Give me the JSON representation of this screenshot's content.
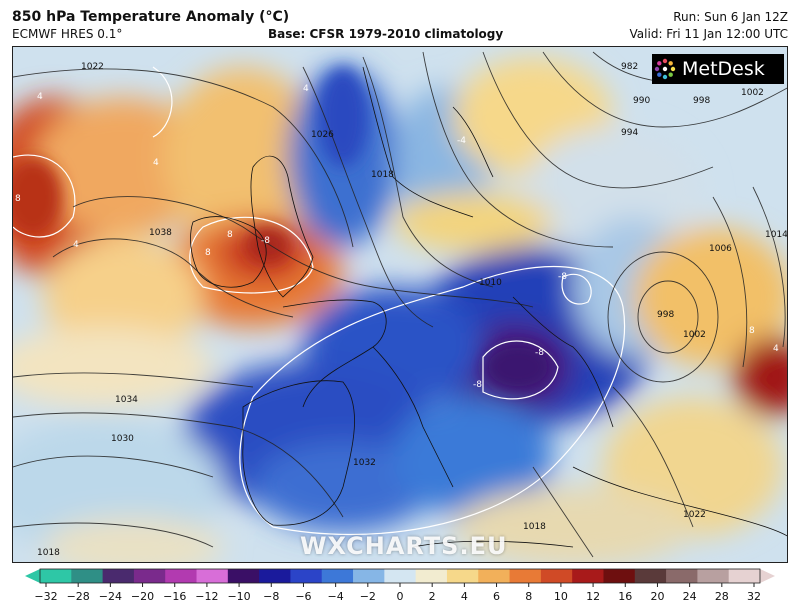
{
  "header": {
    "title": "850 hPa Temperature Anomaly (°C)",
    "model": "ECMWF HRES 0.1°",
    "base": "Base: CFSR 1979-2010 climatology",
    "run": "Run: Sun 6 Jan 12Z",
    "valid": "Valid: Fri 11 Jan 12:00 UTC"
  },
  "logo": {
    "text": "MetDesk",
    "icon": "metdesk-starburst-icon"
  },
  "watermark": "WXCHARTS.EU",
  "isobar_labels": [
    "1022",
    "1026",
    "1018",
    "1038",
    "1010",
    "1034",
    "1030",
    "1032",
    "1018",
    "982",
    "990",
    "994",
    "998",
    "1002",
    "1006",
    "1014",
    "998",
    "1002",
    "1018",
    "1022"
  ],
  "anomaly_labels": [
    "4",
    "8",
    "4",
    "8",
    "8",
    "4",
    "4",
    "-8",
    "-8",
    "-8",
    "8",
    "4",
    "-4",
    "-8"
  ],
  "colorbar": {
    "ticks": [
      "−32",
      "−28",
      "−24",
      "−20",
      "−16",
      "−12",
      "−10",
      "−8",
      "−6",
      "−4",
      "−2",
      "0",
      "2",
      "4",
      "6",
      "8",
      "10",
      "12",
      "16",
      "20",
      "24",
      "28",
      "32"
    ],
    "colors": [
      "#2ec7a6",
      "#2f8f86",
      "#4a2a6e",
      "#7a2a8c",
      "#b23ab0",
      "#d86ed8",
      "#3a0f66",
      "#1a1a9c",
      "#2b44c8",
      "#3d78d8",
      "#86b6e6",
      "#d4e6f2",
      "#f2ecd0",
      "#f6d88a",
      "#f2b05a",
      "#e87a36",
      "#d04a26",
      "#a81a1a",
      "#6e0f0f",
      "#5a3a3a",
      "#8a6a6a",
      "#b8a0a0",
      "#e6d2d2"
    ]
  }
}
